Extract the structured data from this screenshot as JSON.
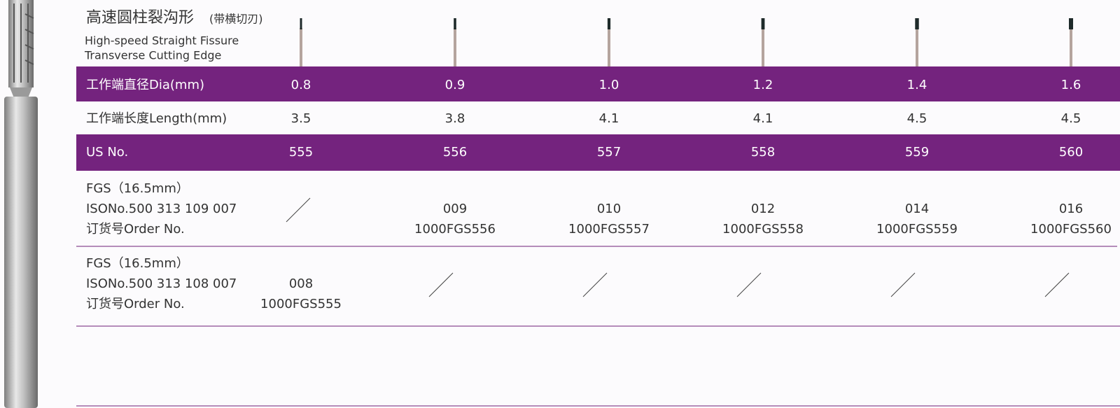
{
  "header": {
    "title": "高速圆柱裂沟形",
    "title_note": "(带横切刃)",
    "subtitle_lines": [
      "High-speed Straight Fissure",
      "Transverse  Cutting Edge"
    ]
  },
  "table": {
    "dia": {
      "label": "工作端直径Dia(mm)",
      "values": [
        "0.8",
        "0.9",
        "1.0",
        "1.2",
        "1.4",
        "1.6"
      ]
    },
    "length": {
      "label": "工作端长度Length(mm)",
      "values": [
        "3.5",
        "3.8",
        "4.1",
        "4.1",
        "4.5",
        "4.5"
      ]
    },
    "us_no": {
      "label": "US No.",
      "values": [
        "555",
        "556",
        "557",
        "558",
        "559",
        "560"
      ]
    },
    "fgs_109": {
      "label_lines": [
        "FGS（16.5mm）",
        "ISONo.500 313 109 007",
        "订货号Order No."
      ],
      "cells": [
        null,
        {
          "iso": "009",
          "order": "1000FGS556"
        },
        {
          "iso": "010",
          "order": "1000FGS557"
        },
        {
          "iso": "012",
          "order": "1000FGS558"
        },
        {
          "iso": "014",
          "order": "1000FGS559"
        },
        {
          "iso": "016",
          "order": "1000FGS560"
        }
      ]
    },
    "fgs_108": {
      "label_lines": [
        "FGS（16.5mm）",
        "ISONo.500 313 108 007",
        "订货号Order No."
      ],
      "cells": [
        {
          "iso": "008",
          "order": "1000FGS555"
        },
        null,
        null,
        null,
        null,
        null
      ]
    }
  }
}
